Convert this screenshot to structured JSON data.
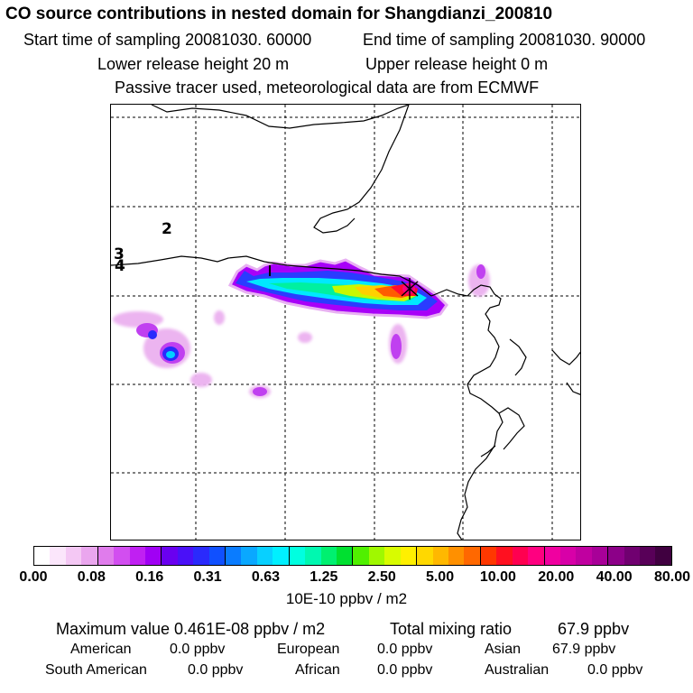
{
  "header": {
    "title": "CO  source contributions in nested domain for Shangdianzi_200810",
    "start_time": "Start time of sampling 20081030. 60000",
    "end_time": "End time of sampling 20081030. 90000",
    "lower_release": "Lower release height   20 m",
    "upper_release": "Upper release height    0 m",
    "note": "Passive tracer used, meteorological data are from ECMWF"
  },
  "map": {
    "region_labels": [
      "2",
      "3",
      "4"
    ],
    "receptor_marker": "star-icon"
  },
  "colorbar": {
    "ticks": [
      "0.00",
      "0.08",
      "0.16",
      "0.31",
      "0.63",
      "1.25",
      "2.50",
      "5.00",
      "10.00",
      "20.00",
      "40.00",
      "80.00"
    ],
    "unit": "10E-10 ppbv / m2",
    "colors": [
      "#ffffff",
      "#fbe6fb",
      "#f4c8f4",
      "#eaa6ee",
      "#e07cec",
      "#d24ef0",
      "#c020f2",
      "#a000f4",
      "#6a00f0",
      "#4a10f8",
      "#2a2afc",
      "#1050ff",
      "#0a7cff",
      "#0aa8ff",
      "#08d0ff",
      "#00f0ff",
      "#00ffe0",
      "#00f8b0",
      "#00f070",
      "#00e030",
      "#50f000",
      "#a0f800",
      "#d8fc00",
      "#fff000",
      "#ffd800",
      "#ffb800",
      "#ff9000",
      "#ff6800",
      "#ff3800",
      "#ff1020",
      "#ff0050",
      "#ff0080",
      "#f000a0",
      "#d800a8",
      "#c000a0",
      "#a80098",
      "#8c0088",
      "#700070",
      "#580058",
      "#400040"
    ]
  },
  "summary": {
    "max_label": "Maximum value  0.461E-08 ppbv / m2",
    "total_label": "Total mixing ratio",
    "total_value": "67.9 ppbv",
    "american_label": "American",
    "american_value": "0.0 ppbv",
    "european_label": "European",
    "european_value": "0.0 ppbv",
    "asian_label": "Asian",
    "asian_value": "67.9 ppbv",
    "south_american_label": "South American",
    "south_american_value": "0.0 ppbv",
    "african_label": "African",
    "african_value": "0.0 ppbv",
    "australian_label": "Australian",
    "australian_value": "0.0 ppbv"
  }
}
